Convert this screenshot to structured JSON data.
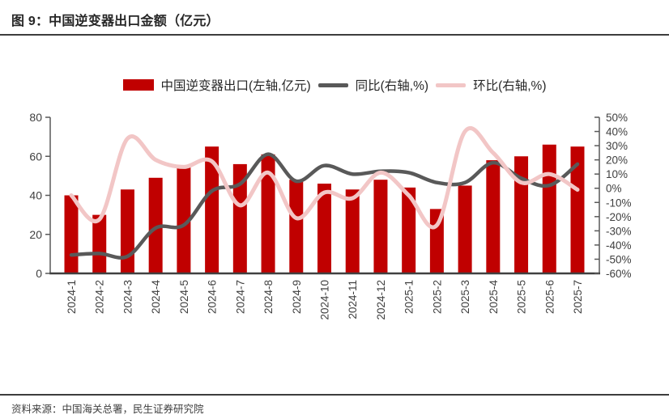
{
  "title": "图 9：中国逆变器出口金额（亿元）",
  "source_note": "资料来源：中国海关总署，民生证券研究院",
  "colors": {
    "bar": "#C00000",
    "yoy_line": "#595959",
    "mom_line": "#F2C6C6",
    "axis": "#595959",
    "bottom_axis": "#404040",
    "tick_label": "#404040",
    "title_text": "#262626"
  },
  "chart_data": {
    "type": "bar",
    "categories": [
      "2024-1",
      "2024-2",
      "2024-3",
      "2024-4",
      "2024-5",
      "2024-6",
      "2024-7",
      "2024-8",
      "2024-9",
      "2024-10",
      "2024-11",
      "2024-12",
      "2025-1",
      "2025-2",
      "2025-3",
      "2025-4",
      "2025-5",
      "2025-6",
      "2025-7"
    ],
    "series": [
      {
        "name": "中国逆变器出口(左轴,亿元)",
        "kind": "bar",
        "axis": "left",
        "values": [
          40,
          30,
          43,
          49,
          55,
          65,
          56,
          61,
          48,
          46,
          43,
          48,
          44,
          33,
          45,
          58,
          60,
          66,
          65
        ]
      },
      {
        "name": "同比(右轴,%)",
        "kind": "line",
        "axis": "right",
        "values": [
          -47,
          -46,
          -48,
          -28,
          -26,
          -2,
          3,
          24,
          5,
          16,
          10,
          12,
          11,
          4,
          4,
          18,
          7,
          2,
          17
        ]
      },
      {
        "name": "环比(右轴,%)",
        "kind": "line",
        "axis": "right",
        "values": [
          -5,
          -22,
          35,
          20,
          15,
          19,
          -12,
          11,
          -21,
          -3,
          -7,
          11,
          -5,
          -26,
          40,
          25,
          4,
          10,
          -1
        ]
      }
    ],
    "left_axis": {
      "min": 0,
      "max": 80,
      "ticks": [
        0,
        20,
        40,
        60,
        80
      ]
    },
    "right_axis": {
      "min": -60,
      "max": 50,
      "step": 10,
      "tick_labels": [
        "-60%",
        "-50%",
        "-40%",
        "-30%",
        "-20%",
        "-10%",
        "0%",
        "10%",
        "20%",
        "30%",
        "40%",
        "50%"
      ]
    },
    "grid": false,
    "legend_position": "top"
  }
}
